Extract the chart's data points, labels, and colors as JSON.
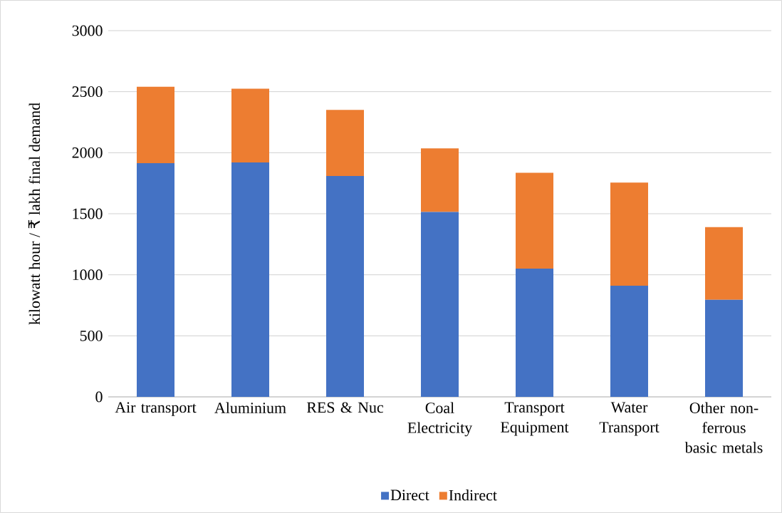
{
  "chart_data": {
    "type": "bar",
    "stacked": true,
    "ylabel": "kilowatt hour / ₹ lakh final demand",
    "categories": [
      "Air transport",
      "Aluminium",
      "RES & Nuc",
      "Coal Electricity",
      "Transport Equipment",
      "Water Transport",
      "Other non-ferrous basic metals"
    ],
    "series": [
      {
        "name": "Direct",
        "color": "#4472c4",
        "values": [
          1915,
          1920,
          1810,
          1515,
          1050,
          910,
          795
        ]
      },
      {
        "name": "Indirect",
        "color": "#ed7d31",
        "values": [
          625,
          605,
          540,
          520,
          785,
          845,
          595
        ]
      }
    ],
    "ylim": [
      0,
      3000
    ],
    "yticks": [
      0,
      500,
      1000,
      1500,
      2000,
      2500,
      3000
    ],
    "grid": "y",
    "legend": "bottom"
  }
}
